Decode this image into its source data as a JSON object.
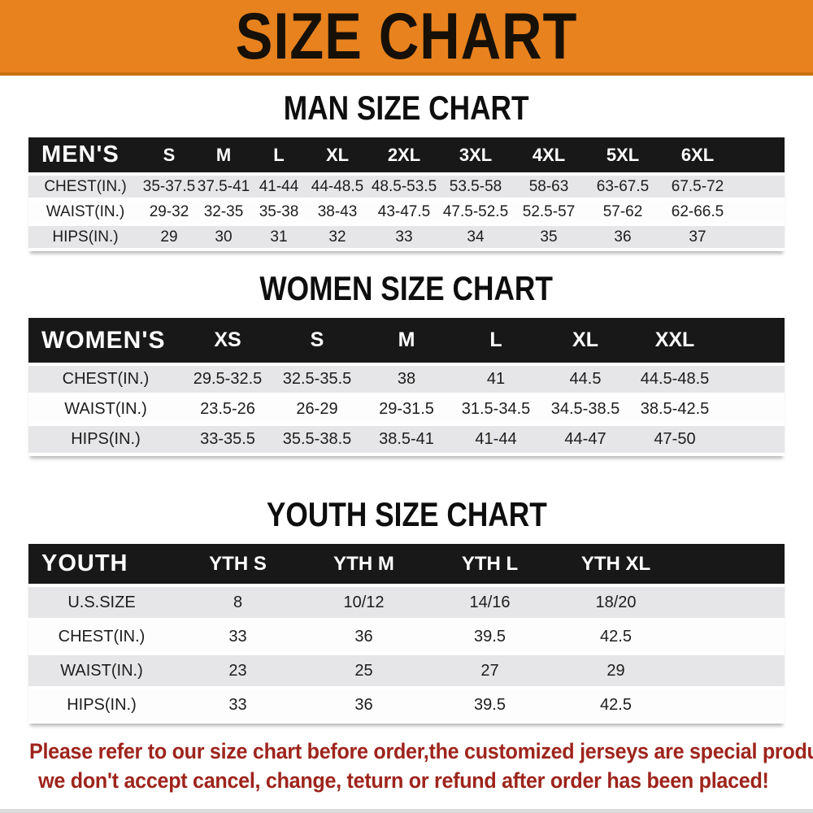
{
  "banner": {
    "title": "SIZE CHART",
    "bg_color": "#e8821e",
    "border_color": "#c9700f",
    "text_color": "#171007"
  },
  "sections": [
    {
      "heading": "MAN SIZE CHART",
      "table": {
        "header": {
          "label": "MEN'S",
          "columns": [
            "S",
            "M",
            "L",
            "XL",
            "2XL",
            "3XL",
            "4XL",
            "5XL",
            "6XL"
          ]
        },
        "rows": [
          {
            "label": "CHEST(IN.)",
            "values": [
              "35-37.5",
              "37.5-41",
              "41-44",
              "44-48.5",
              "48.5-53.5",
              "53.5-58",
              "58-63",
              "63-67.5",
              "67.5-72"
            ]
          },
          {
            "label": "WAIST(IN.)",
            "values": [
              "29-32",
              "32-35",
              "35-38",
              "38-43",
              "43-47.5",
              "47.5-52.5",
              "52.5-57",
              "57-62",
              "62-66.5"
            ]
          },
          {
            "label": "HIPS(IN.)",
            "values": [
              "29",
              "30",
              "31",
              "32",
              "33",
              "34",
              "35",
              "36",
              "37"
            ]
          }
        ]
      }
    },
    {
      "heading": "WOMEN SIZE CHART",
      "table": {
        "header": {
          "label": "WOMEN'S",
          "columns": [
            "XS",
            "S",
            "M",
            "L",
            "XL",
            "XXL"
          ]
        },
        "rows": [
          {
            "label": "CHEST(IN.)",
            "values": [
              "29.5-32.5",
              "32.5-35.5",
              "38",
              "41",
              "44.5",
              "44.5-48.5"
            ]
          },
          {
            "label": "WAIST(IN.)",
            "values": [
              "23.5-26",
              "26-29",
              "29-31.5",
              "31.5-34.5",
              "34.5-38.5",
              "38.5-42.5"
            ]
          },
          {
            "label": "HIPS(IN.)",
            "values": [
              "33-35.5",
              "35.5-38.5",
              "38.5-41",
              "41-44",
              "44-47",
              "47-50"
            ]
          }
        ]
      }
    },
    {
      "heading": "YOUTH SIZE CHART",
      "table": {
        "header": {
          "label": "YOUTH",
          "columns": [
            "YTH S",
            "YTH M",
            "YTH L",
            "YTH XL"
          ]
        },
        "rows": [
          {
            "label": "U.S.SIZE",
            "values": [
              "8",
              "10/12",
              "14/16",
              "18/20"
            ]
          },
          {
            "label": "CHEST(IN.)",
            "values": [
              "33",
              "36",
              "39.5",
              "42.5"
            ]
          },
          {
            "label": "WAIST(IN.)",
            "values": [
              "23",
              "25",
              "27",
              "29"
            ]
          },
          {
            "label": "HIPS(IN.)",
            "values": [
              "33",
              "36",
              "39.5",
              "42.5"
            ]
          }
        ]
      }
    }
  ],
  "footer": {
    "line1": "Please refer to our size chart before order,the customized jerseys are special products,",
    "line2": "we don't accept cancel, change, teturn or refund after order has been placed!",
    "text_color": "#9e241c"
  },
  "colors": {
    "header_bar": "#181818",
    "row_gray": "#e6e6e8",
    "row_white": "#fdfdfd"
  }
}
